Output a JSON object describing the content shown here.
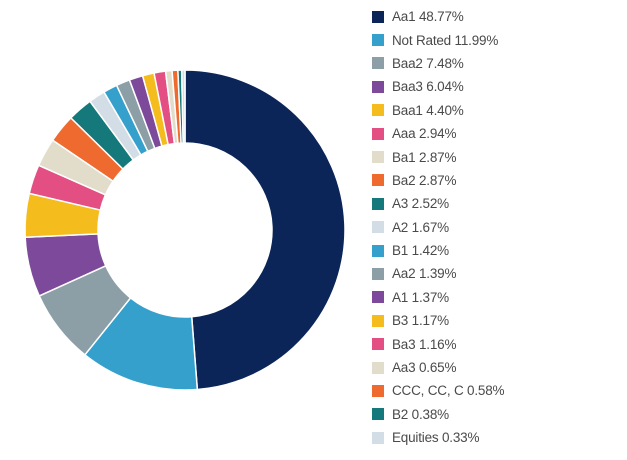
{
  "chart_data": {
    "type": "pie",
    "variant": "donut",
    "legend_position": "right",
    "slices": [
      {
        "label": "Aa1",
        "value": 48.77,
        "color": "#0b2559"
      },
      {
        "label": "Not Rated",
        "value": 11.99,
        "color": "#35a0cb"
      },
      {
        "label": "Baa2",
        "value": 7.48,
        "color": "#8c9ea6"
      },
      {
        "label": "Baa3",
        "value": 6.04,
        "color": "#7d4a9b"
      },
      {
        "label": "Baa1",
        "value": 4.4,
        "color": "#f4bc1c"
      },
      {
        "label": "Aaa",
        "value": 2.94,
        "color": "#e34f82"
      },
      {
        "label": "Ba1",
        "value": 2.87,
        "color": "#e2dccb"
      },
      {
        "label": "Ba2",
        "value": 2.87,
        "color": "#ee6a2f"
      },
      {
        "label": "A3",
        "value": 2.52,
        "color": "#15787a"
      },
      {
        "label": "A2",
        "value": 1.67,
        "color": "#d2dde5"
      },
      {
        "label": "B1",
        "value": 1.42,
        "color": "#35a0cb"
      },
      {
        "label": "Aa2",
        "value": 1.39,
        "color": "#8c9ea6"
      },
      {
        "label": "A1",
        "value": 1.37,
        "color": "#7d4a9b"
      },
      {
        "label": "B3",
        "value": 1.17,
        "color": "#f4bc1c"
      },
      {
        "label": "Ba3",
        "value": 1.16,
        "color": "#e34f82"
      },
      {
        "label": "Aa3",
        "value": 0.65,
        "color": "#e2dccb"
      },
      {
        "label": "CCC, CC, C",
        "value": 0.58,
        "color": "#ee6a2f"
      },
      {
        "label": "B2",
        "value": 0.38,
        "color": "#15787a"
      },
      {
        "label": "Equities",
        "value": 0.33,
        "color": "#d2dde5"
      }
    ],
    "legend": [
      "Aa1 48.77%",
      "Not Rated 11.99%",
      "Baa2 7.48%",
      "Baa3 6.04%",
      "Baa1 4.40%",
      "Aaa 2.94%",
      "Ba1 2.87%",
      "Ba2 2.87%",
      "A3 2.52%",
      "A2 1.67%",
      "B1 1.42%",
      "Aa2 1.39%",
      "A1 1.37%",
      "B3 1.17%",
      "Ba3 1.16%",
      "Aa3 0.65%",
      "CCC, CC, C 0.58%",
      "B2 0.38%",
      "Equities 0.33%"
    ]
  }
}
